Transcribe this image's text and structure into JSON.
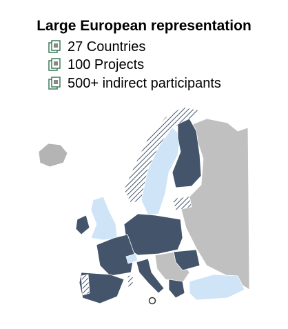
{
  "header": {
    "title": "Large European representation"
  },
  "bullets": [
    "27 Countries",
    "100 Projects",
    "500+ indirect participants"
  ]
}
